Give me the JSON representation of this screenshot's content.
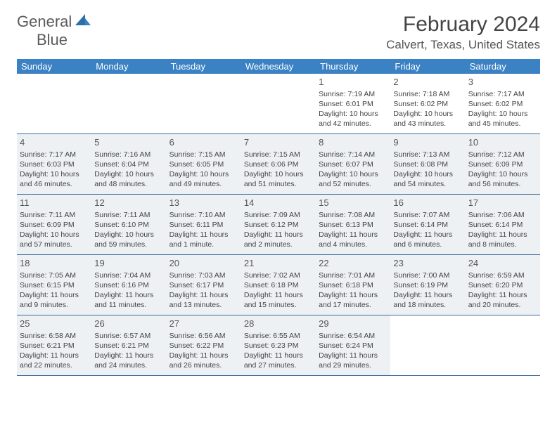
{
  "logo": {
    "line1": "General",
    "line2": "Blue"
  },
  "title": "February 2024",
  "location": "Calvert, Texas, United States",
  "weekdays": [
    "Sunday",
    "Monday",
    "Tuesday",
    "Wednesday",
    "Thursday",
    "Friday",
    "Saturday"
  ],
  "colors": {
    "header_bg": "#3b82c4",
    "header_text": "#ffffff",
    "row_border": "#3b6a9a",
    "shade_bg": "#eef1f3",
    "text": "#444444"
  },
  "weeks": [
    {
      "shade": false,
      "cells": [
        {
          "day": "",
          "sunrise": "",
          "sunset": "",
          "d1": "",
          "d2": ""
        },
        {
          "day": "",
          "sunrise": "",
          "sunset": "",
          "d1": "",
          "d2": ""
        },
        {
          "day": "",
          "sunrise": "",
          "sunset": "",
          "d1": "",
          "d2": ""
        },
        {
          "day": "",
          "sunrise": "",
          "sunset": "",
          "d1": "",
          "d2": ""
        },
        {
          "day": "1",
          "sunrise": "Sunrise: 7:19 AM",
          "sunset": "Sunset: 6:01 PM",
          "d1": "Daylight: 10 hours",
          "d2": "and 42 minutes."
        },
        {
          "day": "2",
          "sunrise": "Sunrise: 7:18 AM",
          "sunset": "Sunset: 6:02 PM",
          "d1": "Daylight: 10 hours",
          "d2": "and 43 minutes."
        },
        {
          "day": "3",
          "sunrise": "Sunrise: 7:17 AM",
          "sunset": "Sunset: 6:02 PM",
          "d1": "Daylight: 10 hours",
          "d2": "and 45 minutes."
        }
      ]
    },
    {
      "shade": true,
      "cells": [
        {
          "day": "4",
          "sunrise": "Sunrise: 7:17 AM",
          "sunset": "Sunset: 6:03 PM",
          "d1": "Daylight: 10 hours",
          "d2": "and 46 minutes."
        },
        {
          "day": "5",
          "sunrise": "Sunrise: 7:16 AM",
          "sunset": "Sunset: 6:04 PM",
          "d1": "Daylight: 10 hours",
          "d2": "and 48 minutes."
        },
        {
          "day": "6",
          "sunrise": "Sunrise: 7:15 AM",
          "sunset": "Sunset: 6:05 PM",
          "d1": "Daylight: 10 hours",
          "d2": "and 49 minutes."
        },
        {
          "day": "7",
          "sunrise": "Sunrise: 7:15 AM",
          "sunset": "Sunset: 6:06 PM",
          "d1": "Daylight: 10 hours",
          "d2": "and 51 minutes."
        },
        {
          "day": "8",
          "sunrise": "Sunrise: 7:14 AM",
          "sunset": "Sunset: 6:07 PM",
          "d1": "Daylight: 10 hours",
          "d2": "and 52 minutes."
        },
        {
          "day": "9",
          "sunrise": "Sunrise: 7:13 AM",
          "sunset": "Sunset: 6:08 PM",
          "d1": "Daylight: 10 hours",
          "d2": "and 54 minutes."
        },
        {
          "day": "10",
          "sunrise": "Sunrise: 7:12 AM",
          "sunset": "Sunset: 6:09 PM",
          "d1": "Daylight: 10 hours",
          "d2": "and 56 minutes."
        }
      ]
    },
    {
      "shade": true,
      "cells": [
        {
          "day": "11",
          "sunrise": "Sunrise: 7:11 AM",
          "sunset": "Sunset: 6:09 PM",
          "d1": "Daylight: 10 hours",
          "d2": "and 57 minutes."
        },
        {
          "day": "12",
          "sunrise": "Sunrise: 7:11 AM",
          "sunset": "Sunset: 6:10 PM",
          "d1": "Daylight: 10 hours",
          "d2": "and 59 minutes."
        },
        {
          "day": "13",
          "sunrise": "Sunrise: 7:10 AM",
          "sunset": "Sunset: 6:11 PM",
          "d1": "Daylight: 11 hours",
          "d2": "and 1 minute."
        },
        {
          "day": "14",
          "sunrise": "Sunrise: 7:09 AM",
          "sunset": "Sunset: 6:12 PM",
          "d1": "Daylight: 11 hours",
          "d2": "and 2 minutes."
        },
        {
          "day": "15",
          "sunrise": "Sunrise: 7:08 AM",
          "sunset": "Sunset: 6:13 PM",
          "d1": "Daylight: 11 hours",
          "d2": "and 4 minutes."
        },
        {
          "day": "16",
          "sunrise": "Sunrise: 7:07 AM",
          "sunset": "Sunset: 6:14 PM",
          "d1": "Daylight: 11 hours",
          "d2": "and 6 minutes."
        },
        {
          "day": "17",
          "sunrise": "Sunrise: 7:06 AM",
          "sunset": "Sunset: 6:14 PM",
          "d1": "Daylight: 11 hours",
          "d2": "and 8 minutes."
        }
      ]
    },
    {
      "shade": true,
      "cells": [
        {
          "day": "18",
          "sunrise": "Sunrise: 7:05 AM",
          "sunset": "Sunset: 6:15 PM",
          "d1": "Daylight: 11 hours",
          "d2": "and 9 minutes."
        },
        {
          "day": "19",
          "sunrise": "Sunrise: 7:04 AM",
          "sunset": "Sunset: 6:16 PM",
          "d1": "Daylight: 11 hours",
          "d2": "and 11 minutes."
        },
        {
          "day": "20",
          "sunrise": "Sunrise: 7:03 AM",
          "sunset": "Sunset: 6:17 PM",
          "d1": "Daylight: 11 hours",
          "d2": "and 13 minutes."
        },
        {
          "day": "21",
          "sunrise": "Sunrise: 7:02 AM",
          "sunset": "Sunset: 6:18 PM",
          "d1": "Daylight: 11 hours",
          "d2": "and 15 minutes."
        },
        {
          "day": "22",
          "sunrise": "Sunrise: 7:01 AM",
          "sunset": "Sunset: 6:18 PM",
          "d1": "Daylight: 11 hours",
          "d2": "and 17 minutes."
        },
        {
          "day": "23",
          "sunrise": "Sunrise: 7:00 AM",
          "sunset": "Sunset: 6:19 PM",
          "d1": "Daylight: 11 hours",
          "d2": "and 18 minutes."
        },
        {
          "day": "24",
          "sunrise": "Sunrise: 6:59 AM",
          "sunset": "Sunset: 6:20 PM",
          "d1": "Daylight: 11 hours",
          "d2": "and 20 minutes."
        }
      ]
    },
    {
      "shade": true,
      "cells": [
        {
          "day": "25",
          "sunrise": "Sunrise: 6:58 AM",
          "sunset": "Sunset: 6:21 PM",
          "d1": "Daylight: 11 hours",
          "d2": "and 22 minutes."
        },
        {
          "day": "26",
          "sunrise": "Sunrise: 6:57 AM",
          "sunset": "Sunset: 6:21 PM",
          "d1": "Daylight: 11 hours",
          "d2": "and 24 minutes."
        },
        {
          "day": "27",
          "sunrise": "Sunrise: 6:56 AM",
          "sunset": "Sunset: 6:22 PM",
          "d1": "Daylight: 11 hours",
          "d2": "and 26 minutes."
        },
        {
          "day": "28",
          "sunrise": "Sunrise: 6:55 AM",
          "sunset": "Sunset: 6:23 PM",
          "d1": "Daylight: 11 hours",
          "d2": "and 27 minutes."
        },
        {
          "day": "29",
          "sunrise": "Sunrise: 6:54 AM",
          "sunset": "Sunset: 6:24 PM",
          "d1": "Daylight: 11 hours",
          "d2": "and 29 minutes."
        },
        {
          "day": "",
          "sunrise": "",
          "sunset": "",
          "d1": "",
          "d2": ""
        },
        {
          "day": "",
          "sunrise": "",
          "sunset": "",
          "d1": "",
          "d2": ""
        }
      ]
    }
  ]
}
